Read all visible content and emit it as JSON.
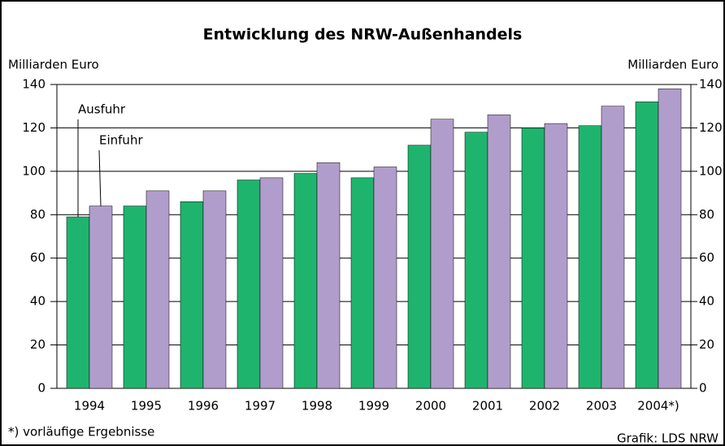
{
  "chart_data": {
    "type": "bar",
    "title": "Entwicklung des NRW-Außenhandels",
    "y_label": "Milliarden Euro",
    "y2_label": "Milliarden Euro",
    "categories": [
      "1994",
      "1995",
      "1996",
      "1997",
      "1998",
      "1999",
      "2000",
      "2001",
      "2002",
      "2003",
      "2004*)"
    ],
    "series": [
      {
        "name": "Ausfuhr",
        "color": "#1fb46e",
        "values": [
          79,
          84,
          86,
          96,
          99,
          97,
          112,
          118,
          120,
          121,
          132
        ]
      },
      {
        "name": "Einfuhr",
        "color": "#b19dcb",
        "values": [
          84,
          91,
          91,
          97,
          104,
          102,
          124,
          126,
          122,
          130,
          138
        ]
      }
    ],
    "ylim": [
      0,
      140
    ],
    "yticks": [
      0,
      20,
      40,
      60,
      80,
      100,
      120,
      140
    ],
    "y2lim": [
      0,
      140
    ],
    "y2ticks": [
      0,
      20,
      40,
      60,
      80,
      100,
      120,
      140
    ],
    "grid": true,
    "footnote": "*) vorläufige Ergebnisse",
    "source": "Grafik: LDS NRW"
  }
}
